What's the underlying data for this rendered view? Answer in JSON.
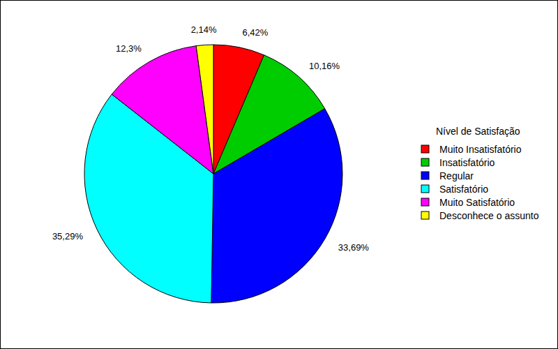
{
  "chart_data": {
    "type": "pie",
    "legend_title": "Nível de Satisfação",
    "categories": [
      "Muito Insatisfatório",
      "Insatisfatório",
      "Regular",
      "Satisfatório",
      "Muito Satisfatório",
      "Desconhece o assunto"
    ],
    "values": [
      6.42,
      10.16,
      33.69,
      35.29,
      12.3,
      2.14
    ],
    "value_labels": [
      "6,42%",
      "10,16%",
      "33,69%",
      "35,29%",
      "12,3%",
      "2,14%"
    ],
    "colors": [
      "#ff0000",
      "#00cd00",
      "#0000ff",
      "#00ffff",
      "#ff00ff",
      "#ffff00"
    ],
    "data_labels": true,
    "legend": "right"
  }
}
